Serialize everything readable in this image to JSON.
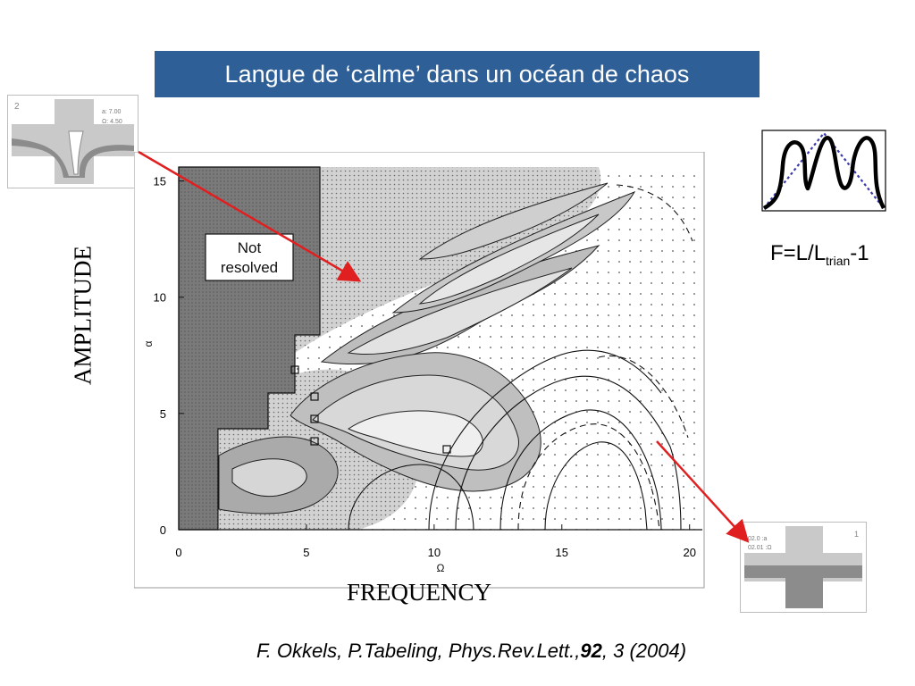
{
  "slide": {
    "title": "Langue de ‘calme’ dans un océan de chaos",
    "ylabel": "AMPLITUDE",
    "xlabel": "FREQUENCY",
    "formula": {
      "lhs": "F=L/L",
      "sub": "trian",
      "rhs": "-1"
    },
    "citation": {
      "pre": "F. Okkels, P.Tabeling, Phys.Rev.Lett.,",
      "volume": "92",
      "post": ", 3 (2004)"
    }
  },
  "thumb_top": {
    "index": "2",
    "line1": "a:   7.00",
    "line2": "Ω:   4.50"
  },
  "thumb_bottom": {
    "index": "1",
    "line1": "02.0   :a",
    "line2": "02.01   :Ω"
  },
  "plot": {
    "annotation_line1": "Not",
    "annotation_line2": "resolved",
    "x_axis_symbol": "Ω",
    "y_axis_symbol": "α"
  },
  "chart_data": {
    "type": "heatmap",
    "xlabel": "Ω",
    "ylabel": "α",
    "xlim": [
      0,
      20.5
    ],
    "ylim": [
      0,
      15.6
    ],
    "xticks": [
      0,
      5,
      10,
      15,
      20
    ],
    "yticks": [
      0,
      5,
      10,
      15
    ],
    "annotations": [
      "Not resolved"
    ]
  },
  "colors": {
    "title_bg": "#2f5f97",
    "arrow": "#e02020",
    "curve_blue": "#3a3ab0"
  }
}
